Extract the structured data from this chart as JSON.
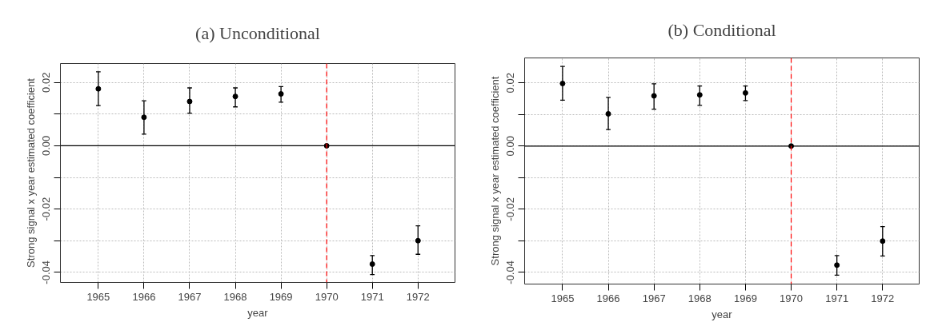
{
  "chart_data": [
    {
      "type": "scatter",
      "title": "(a) Unconditional",
      "xlabel": "year",
      "ylabel": "Strong signal x year estimated coefficient",
      "x": [
        1965,
        1966,
        1967,
        1968,
        1969,
        1970,
        1971,
        1972
      ],
      "values": [
        0.018,
        0.009,
        0.014,
        0.0156,
        0.0164,
        0.0,
        -0.0374,
        -0.03
      ],
      "errors": [
        [
          0.0127,
          0.0234
        ],
        [
          0.0037,
          0.0142
        ],
        [
          0.0103,
          0.0183
        ],
        [
          0.0123,
          0.0183
        ],
        [
          0.0138,
          0.0187
        ],
        null,
        [
          -0.0407,
          -0.0347
        ],
        [
          -0.0343,
          -0.0253
        ]
      ],
      "color": "#000000",
      "marker": "circle",
      "grid": true,
      "xlim": [
        1964.17,
        1972.81
      ],
      "xticks": [
        1965,
        1966,
        1967,
        1968,
        1969,
        1970,
        1971,
        1972
      ],
      "ylim": [
        -0.0432,
        0.026
      ],
      "yticks": [
        {
          "value": -0.04,
          "label": "-0.04"
        },
        {
          "value": -0.03,
          "label": null
        },
        {
          "value": -0.02,
          "label": "-0.02"
        },
        {
          "value": -0.01,
          "label": null
        },
        {
          "value": 0,
          "label": "0.00"
        },
        {
          "value": 0.01,
          "label": null
        },
        {
          "value": 0.02,
          "label": "0.02"
        }
      ],
      "ref_lines": [
        {
          "axis": "y",
          "value": 0,
          "color": "#000000",
          "line_style": "solid"
        },
        {
          "axis": "x",
          "value": 1970,
          "color": "#ff0000",
          "line_style": "dashed"
        }
      ]
    },
    {
      "type": "scatter",
      "title": "(b) Conditional",
      "xlabel": "year",
      "ylabel": "Strong signal x year estimated coefficient",
      "x": [
        1965,
        1966,
        1967,
        1968,
        1969,
        1970,
        1971,
        1972
      ],
      "values": [
        0.0198,
        0.0102,
        0.0159,
        0.0162,
        0.0168,
        0.0,
        -0.0377,
        -0.0301
      ],
      "errors": [
        [
          0.0145,
          0.0252
        ],
        [
          0.0052,
          0.0154
        ],
        [
          0.0117,
          0.0197
        ],
        [
          0.0129,
          0.019
        ],
        [
          0.0144,
          0.019
        ],
        null,
        [
          -0.0409,
          -0.0347
        ],
        [
          -0.0348,
          -0.0255
        ]
      ],
      "color": "#000000",
      "marker": "circle",
      "grid": true,
      "xlim": [
        1964.17,
        1972.8
      ],
      "xticks": [
        1965,
        1966,
        1967,
        1968,
        1969,
        1970,
        1971,
        1972
      ],
      "ylim": [
        -0.0437,
        0.0279
      ],
      "yticks": [
        {
          "value": -0.04,
          "label": "-0.04"
        },
        {
          "value": -0.03,
          "label": null
        },
        {
          "value": -0.02,
          "label": "-0.02"
        },
        {
          "value": -0.01,
          "label": null
        },
        {
          "value": 0,
          "label": "0.00"
        },
        {
          "value": 0.01,
          "label": null
        },
        {
          "value": 0.02,
          "label": "0.02"
        }
      ],
      "ref_lines": [
        {
          "axis": "y",
          "value": 0,
          "color": "#000000",
          "line_style": "solid"
        },
        {
          "axis": "x",
          "value": 1970,
          "color": "#ff0000",
          "line_style": "dashed"
        }
      ]
    }
  ]
}
